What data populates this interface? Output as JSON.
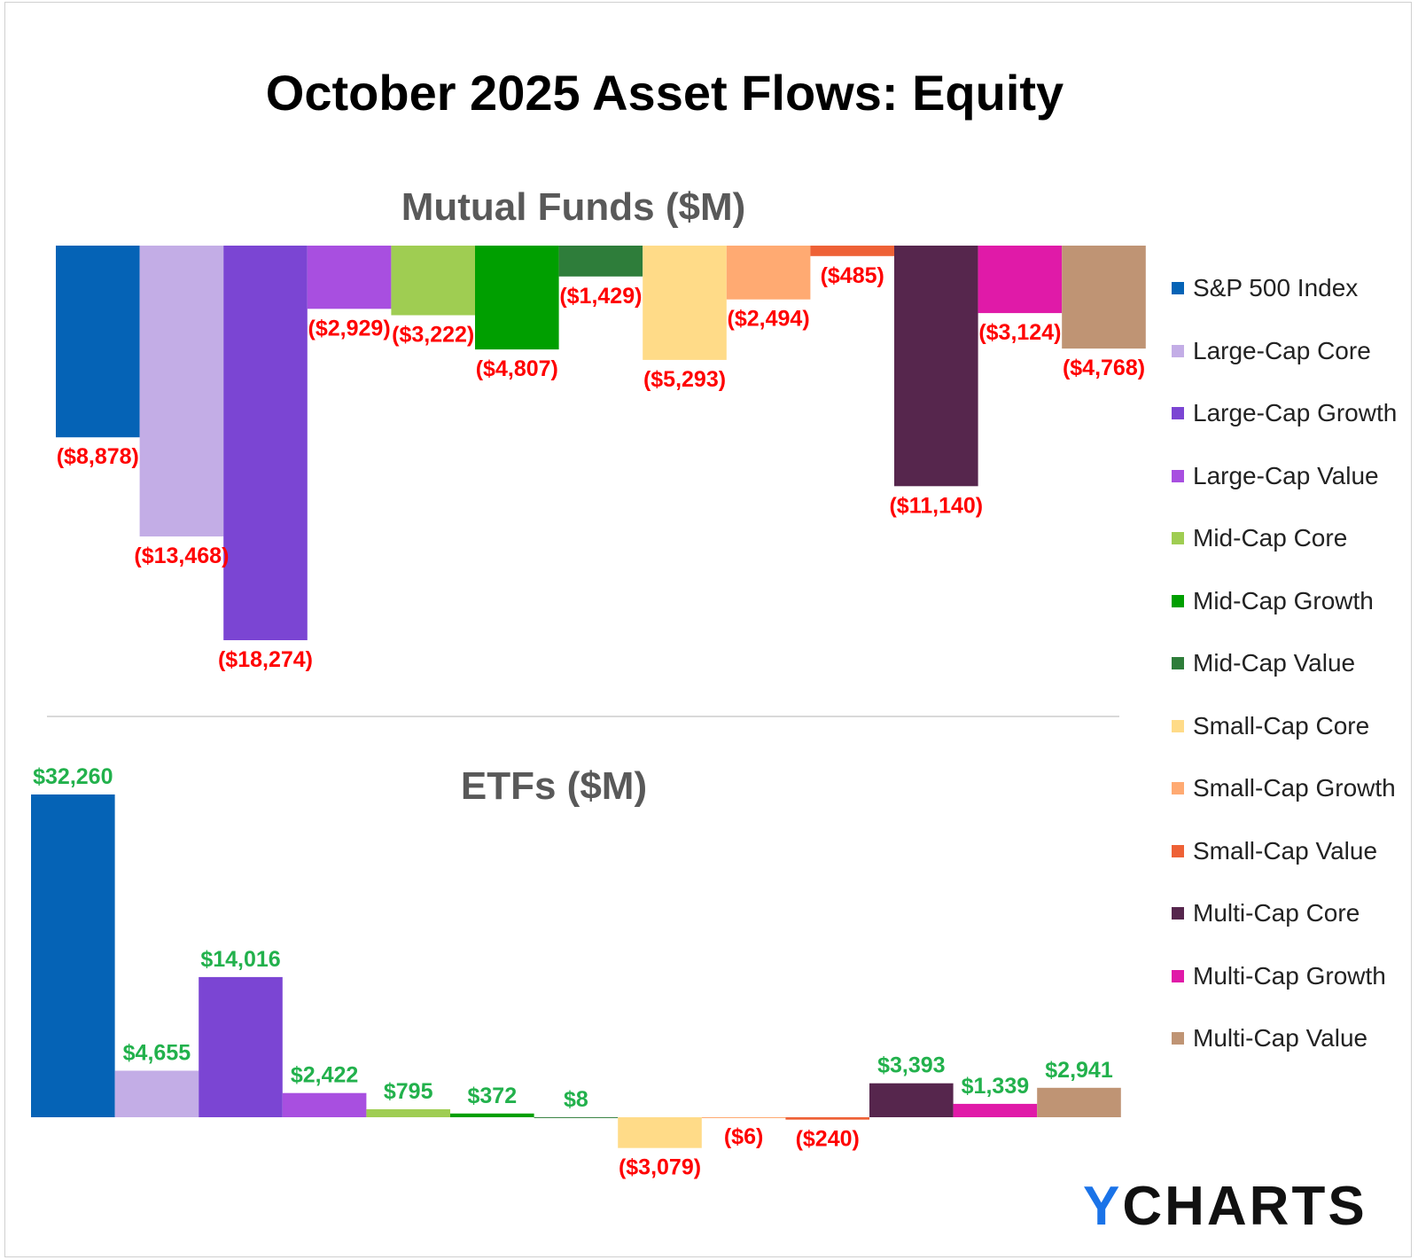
{
  "title": "October 2025 Asset Flows: Equity",
  "logo": {
    "accent": "Y",
    "rest": "CHARTS"
  },
  "colors": {
    "negative_label": "#ff0000",
    "positive_label": "#22b14c",
    "subtitle": "#595959"
  },
  "legend": [
    {
      "label": "S&P 500 Index",
      "color": "#0563b6"
    },
    {
      "label": "Large-Cap Core",
      "color": "#c3ade6"
    },
    {
      "label": "Large-Cap Growth",
      "color": "#7b45d3"
    },
    {
      "label": "Large-Cap Value",
      "color": "#a84fe0"
    },
    {
      "label": "Mid-Cap Core",
      "color": "#9fcd52"
    },
    {
      "label": "Mid-Cap Growth",
      "color": "#009f00"
    },
    {
      "label": "Mid-Cap Value",
      "color": "#2e7d3a"
    },
    {
      "label": "Small-Cap Core",
      "color": "#ffdb88"
    },
    {
      "label": "Small-Cap Growth",
      "color": "#ffaa72"
    },
    {
      "label": "Small-Cap Value",
      "color": "#ee6136"
    },
    {
      "label": "Multi-Cap Core",
      "color": "#56264d"
    },
    {
      "label": "Multi-Cap Growth",
      "color": "#e01aa8"
    },
    {
      "label": "Multi-Cap Value",
      "color": "#bf9474"
    }
  ],
  "chart_data": [
    {
      "type": "bar",
      "title": "Mutual Funds ($M)",
      "categories": [
        "S&P 500 Index",
        "Large-Cap Core",
        "Large-Cap Growth",
        "Large-Cap Value",
        "Mid-Cap Core",
        "Mid-Cap Growth",
        "Mid-Cap Value",
        "Small-Cap Core",
        "Small-Cap Growth",
        "Small-Cap Value",
        "Multi-Cap Core",
        "Multi-Cap Growth",
        "Multi-Cap Value"
      ],
      "values": [
        -8878,
        -13468,
        -18274,
        -2929,
        -3222,
        -4807,
        -1429,
        -5293,
        -2494,
        -485,
        -11140,
        -3124,
        -4768
      ],
      "data_labels": [
        "($8,878)",
        "($13,468)",
        "($18,274)",
        "($2,929)",
        "($3,222)",
        "($4,807)",
        "($1,429)",
        "($5,293)",
        "($2,494)",
        "($485)",
        "($11,140)",
        "($3,124)",
        "($4,768)"
      ],
      "grid": false,
      "legend_position": "right"
    },
    {
      "type": "bar",
      "title": "ETFs ($M)",
      "categories": [
        "S&P 500 Index",
        "Large-Cap Core",
        "Large-Cap Growth",
        "Large-Cap Value",
        "Mid-Cap Core",
        "Mid-Cap Growth",
        "Mid-Cap Value",
        "Small-Cap Core",
        "Small-Cap Growth",
        "Small-Cap Value",
        "Multi-Cap Core",
        "Multi-Cap Growth",
        "Multi-Cap Value"
      ],
      "values": [
        32260,
        4655,
        14016,
        2422,
        795,
        372,
        8,
        -3079,
        -6,
        -240,
        3393,
        1339,
        2941
      ],
      "data_labels": [
        "$32,260",
        "$4,655",
        "$14,016",
        "$2,422",
        "$795",
        "$372",
        "$8",
        "($3,079)",
        "($6)",
        "($240)",
        "$3,393",
        "$1,339",
        "$2,941"
      ],
      "grid": false,
      "legend_position": "right"
    }
  ]
}
